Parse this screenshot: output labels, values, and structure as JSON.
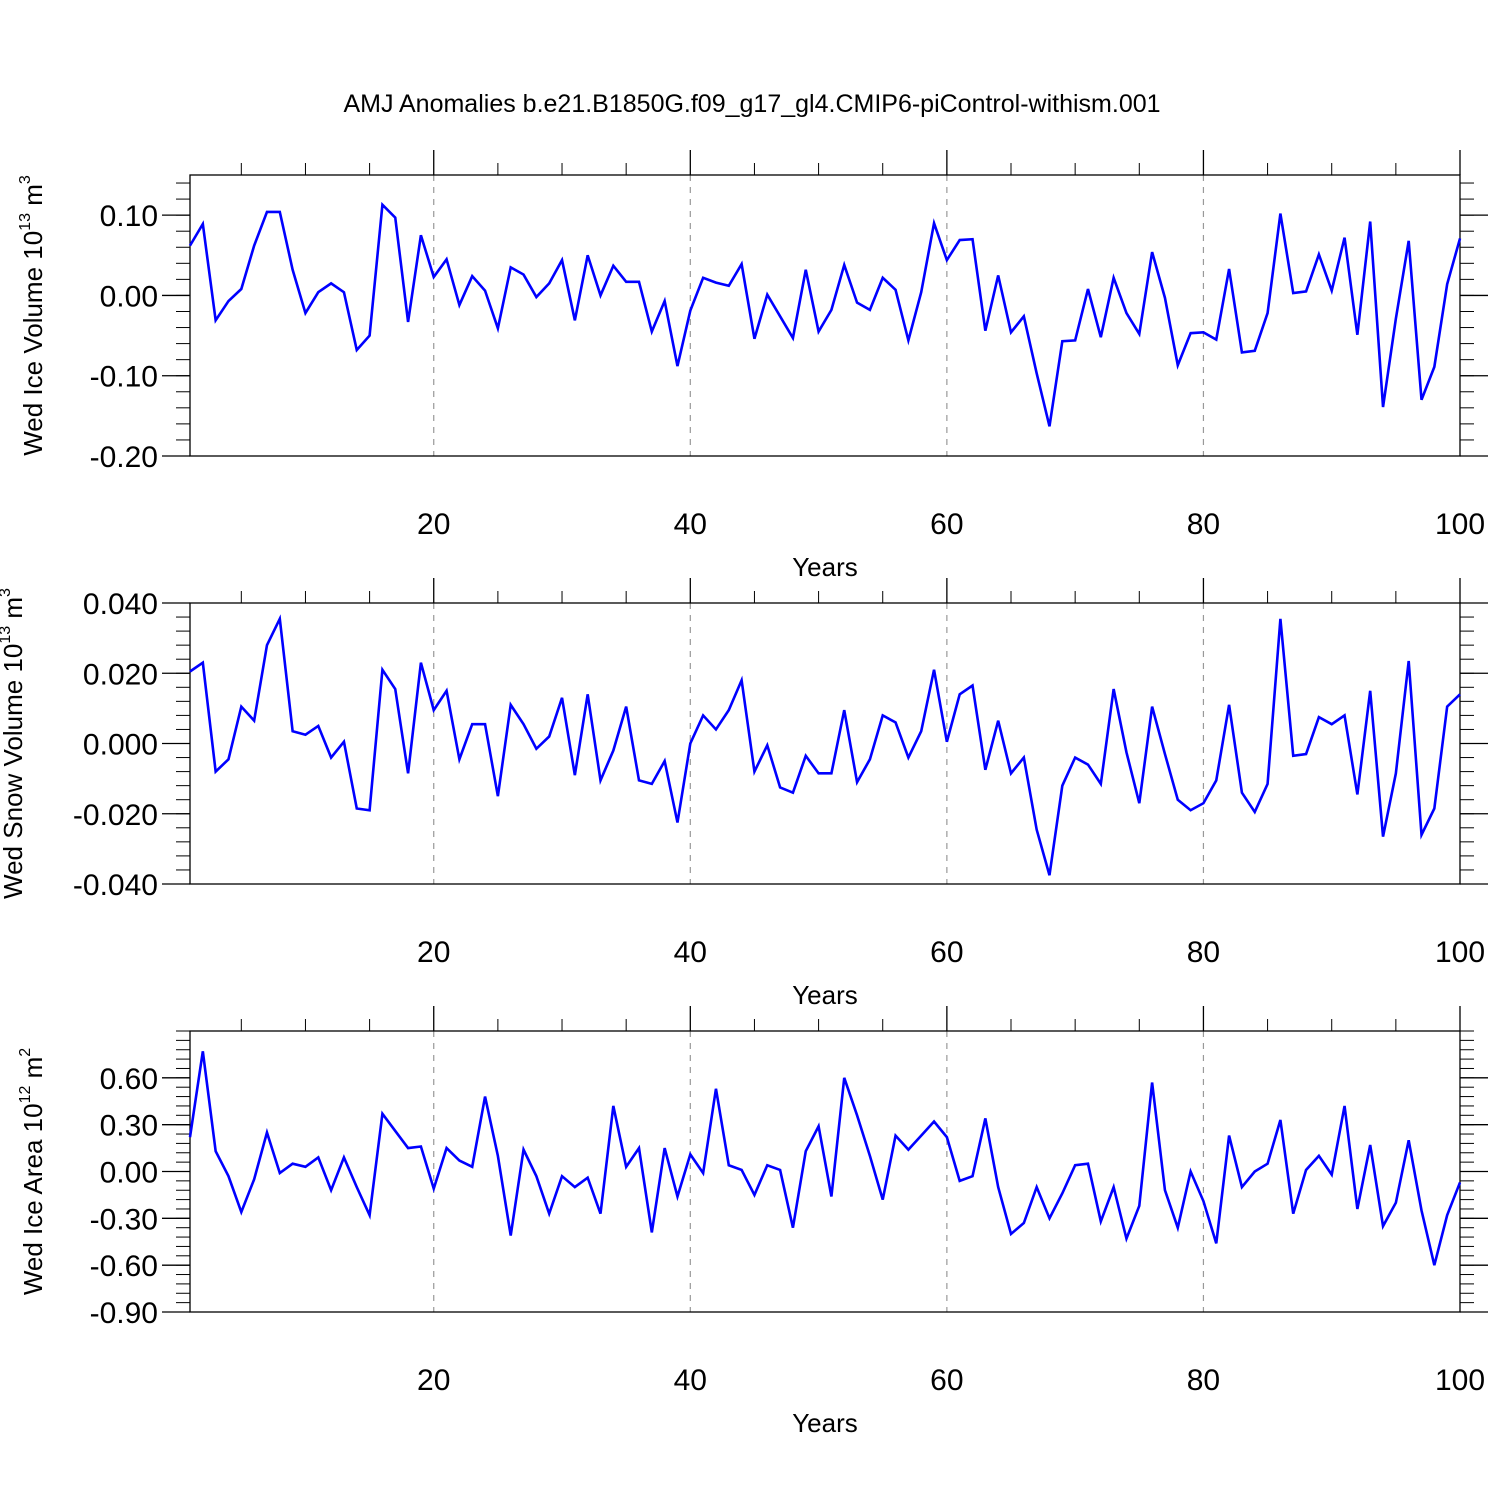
{
  "title": "AMJ Anomalies b.e21.B1850G.f09_g17_gl4.CMIP6-piControl-withism.001",
  "colors": {
    "line": "#0000ff",
    "axis": "#000000",
    "grid": "#999999"
  },
  "chart_data": [
    {
      "type": "line",
      "ylabel": "Wed Ice Volume 10",
      "ylabel_exp": "13",
      "ylabel_unit": "m",
      "ylabel_unit_exp": "3",
      "xlabel": "Years",
      "xlim": [
        1,
        100
      ],
      "ylim": [
        -0.2,
        0.15
      ],
      "xticks": [
        20,
        40,
        60,
        80,
        100
      ],
      "xtick_labels": [
        "20",
        "40",
        "60",
        "80",
        "100"
      ],
      "yticks": [
        -0.2,
        -0.1,
        0.0,
        0.1
      ],
      "ytick_labels": [
        "-0.20",
        "-0.10",
        "0.00",
        "0.10"
      ],
      "grid": "vertical dashed at x ticks",
      "series": [
        {
          "values": [
            0.062,
            0.089,
            -0.031,
            -0.007,
            0.008,
            0.062,
            0.104,
            0.104,
            0.032,
            -0.022,
            0.004,
            0.015,
            0.004,
            -0.068,
            -0.05,
            0.113,
            0.097,
            -0.033,
            0.075,
            0.023,
            0.045,
            -0.012,
            0.024,
            0.006,
            -0.041,
            0.035,
            0.026,
            -0.002,
            0.015,
            0.044,
            -0.031,
            0.05,
            0.0,
            0.037,
            0.017,
            0.017,
            -0.045,
            -0.007,
            -0.088,
            -0.019,
            0.022,
            0.016,
            0.012,
            0.039,
            -0.054,
            0.001,
            -0.026,
            -0.053,
            0.032,
            -0.045,
            -0.018,
            0.038,
            -0.009,
            -0.018,
            0.022,
            0.007,
            -0.056,
            0.004,
            0.09,
            0.044,
            0.069,
            0.07,
            -0.044,
            0.025,
            -0.046,
            -0.026,
            -0.097,
            -0.163,
            -0.057,
            -0.056,
            0.008,
            -0.052,
            0.022,
            -0.022,
            -0.048,
            0.054,
            -0.003,
            -0.087,
            -0.047,
            -0.046,
            -0.055,
            0.033,
            -0.071,
            -0.069,
            -0.022,
            0.102,
            0.003,
            0.005,
            0.051,
            0.006,
            0.072,
            -0.049,
            0.092,
            -0.139,
            -0.029,
            0.068,
            -0.13,
            -0.089,
            0.014,
            0.071
          ]
        }
      ]
    },
    {
      "type": "line",
      "ylabel": "Wed Snow Volume 10",
      "ylabel_exp": "13",
      "ylabel_unit": "m",
      "ylabel_unit_exp": "3",
      "xlabel": "Years",
      "xlim": [
        1,
        100
      ],
      "ylim": [
        -0.04,
        0.04
      ],
      "xticks": [
        20,
        40,
        60,
        80,
        100
      ],
      "xtick_labels": [
        "20",
        "40",
        "60",
        "80",
        "100"
      ],
      "yticks": [
        -0.04,
        -0.02,
        0.0,
        0.02,
        0.04
      ],
      "ytick_labels": [
        "-0.040",
        "-0.020",
        "0.000",
        "0.020",
        "0.040"
      ],
      "grid": "vertical dashed at x ticks",
      "series": [
        {
          "values": [
            0.0205,
            0.023,
            -0.008,
            -0.0045,
            0.0105,
            0.0065,
            0.028,
            0.0355,
            0.0035,
            0.0025,
            0.005,
            -0.004,
            0.0005,
            -0.0185,
            -0.019,
            0.021,
            0.0155,
            -0.0085,
            0.023,
            0.0095,
            0.015,
            -0.0045,
            0.0055,
            0.0055,
            -0.015,
            0.011,
            0.0055,
            -0.0015,
            0.002,
            0.013,
            -0.009,
            0.014,
            -0.0105,
            -0.002,
            0.0105,
            -0.0105,
            -0.0115,
            -0.005,
            -0.0225,
            0.0,
            0.008,
            0.004,
            0.0095,
            0.018,
            -0.008,
            -0.0005,
            -0.0125,
            -0.014,
            -0.0035,
            -0.0085,
            -0.0085,
            0.0095,
            -0.011,
            -0.0045,
            0.008,
            0.006,
            -0.004,
            0.0035,
            0.021,
            0.0005,
            0.014,
            0.0165,
            -0.0075,
            0.0065,
            -0.0085,
            -0.004,
            -0.0245,
            -0.0375,
            -0.012,
            -0.004,
            -0.006,
            -0.0115,
            0.0155,
            -0.0025,
            -0.017,
            0.0105,
            -0.003,
            -0.016,
            -0.019,
            -0.017,
            -0.0105,
            0.011,
            -0.014,
            -0.0195,
            -0.0115,
            0.0355,
            -0.0035,
            -0.003,
            0.0075,
            0.0055,
            0.008,
            -0.0145,
            0.015,
            -0.0265,
            -0.0085,
            0.0235,
            -0.026,
            -0.0185,
            0.0105,
            0.014
          ]
        }
      ]
    },
    {
      "type": "line",
      "ylabel": "Wed Ice Area 10",
      "ylabel_exp": "12",
      "ylabel_unit": "m",
      "ylabel_unit_exp": "2",
      "xlabel": "Years",
      "xlim": [
        1,
        100
      ],
      "ylim": [
        -0.9,
        0.9
      ],
      "xticks": [
        20,
        40,
        60,
        80,
        100
      ],
      "xtick_labels": [
        "20",
        "40",
        "60",
        "80",
        "100"
      ],
      "yticks": [
        -0.9,
        -0.6,
        -0.3,
        0.0,
        0.3,
        0.6
      ],
      "ytick_labels": [
        "-0.90",
        "-0.60",
        "-0.30",
        "0.00",
        "0.30",
        "0.60"
      ],
      "grid": "vertical dashed at x ticks",
      "series": [
        {
          "values": [
            0.22,
            0.77,
            0.13,
            -0.03,
            -0.26,
            -0.05,
            0.25,
            -0.01,
            0.05,
            0.03,
            0.09,
            -0.12,
            0.09,
            -0.1,
            -0.28,
            0.37,
            0.26,
            0.15,
            0.16,
            -0.11,
            0.15,
            0.07,
            0.03,
            0.48,
            0.1,
            -0.41,
            0.14,
            -0.03,
            -0.27,
            -0.03,
            -0.1,
            -0.04,
            -0.27,
            0.42,
            0.03,
            0.15,
            -0.39,
            0.15,
            -0.16,
            0.11,
            -0.01,
            0.53,
            0.04,
            0.01,
            -0.15,
            0.04,
            0.01,
            -0.36,
            0.13,
            0.29,
            -0.16,
            0.6,
            0.36,
            0.1,
            -0.18,
            0.23,
            0.14,
            0.23,
            0.32,
            0.22,
            -0.06,
            -0.03,
            0.34,
            -0.1,
            -0.4,
            -0.33,
            -0.1,
            -0.3,
            -0.14,
            0.04,
            0.05,
            -0.32,
            -0.1,
            -0.43,
            -0.22,
            0.57,
            -0.12,
            -0.36,
            0.0,
            -0.19,
            -0.46,
            0.23,
            -0.1,
            0.0,
            0.05,
            0.33,
            -0.27,
            0.01,
            0.1,
            -0.02,
            0.42,
            -0.24,
            0.17,
            -0.35,
            -0.2,
            0.2,
            -0.25,
            -0.6,
            -0.28,
            -0.07
          ]
        }
      ]
    }
  ]
}
